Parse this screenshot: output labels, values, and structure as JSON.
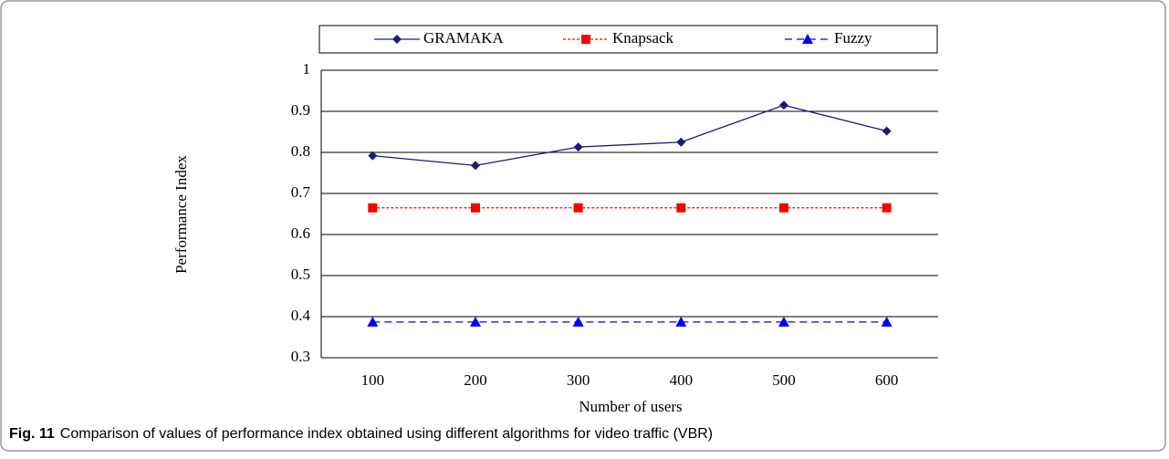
{
  "chart_data": {
    "type": "line",
    "categories": [
      "100",
      "200",
      "300",
      "400",
      "500",
      "600"
    ],
    "series": [
      {
        "name": "GRAMAKA",
        "color": "#1a1a7a",
        "marker": "diamond",
        "line_style": "solid",
        "values": [
          0.792,
          0.768,
          0.813,
          0.825,
          0.915,
          0.852
        ]
      },
      {
        "name": "Knapsack",
        "color": "#ff0000",
        "marker": "square",
        "line_style": "dotted",
        "values": [
          0.665,
          0.665,
          0.665,
          0.665,
          0.665,
          0.665
        ]
      },
      {
        "name": "Fuzzy",
        "color": "#0000ff",
        "marker": "triangle",
        "line_style": "dashed",
        "values": [
          0.387,
          0.387,
          0.387,
          0.387,
          0.387,
          0.387
        ]
      }
    ],
    "ylim": [
      0.3,
      1
    ],
    "yticks": [
      0.3,
      0.4,
      0.5,
      0.6,
      0.7,
      0.8,
      0.9,
      {
        "value": 1,
        "label": "1"
      }
    ],
    "grid": true,
    "legend": "top",
    "y_label": "Performance Index",
    "x_label": "Number of users",
    "caption_label": "Fig. 11",
    "caption": "Comparison of values of performance index obtained using different algorithms for video traffic (VBR)"
  }
}
